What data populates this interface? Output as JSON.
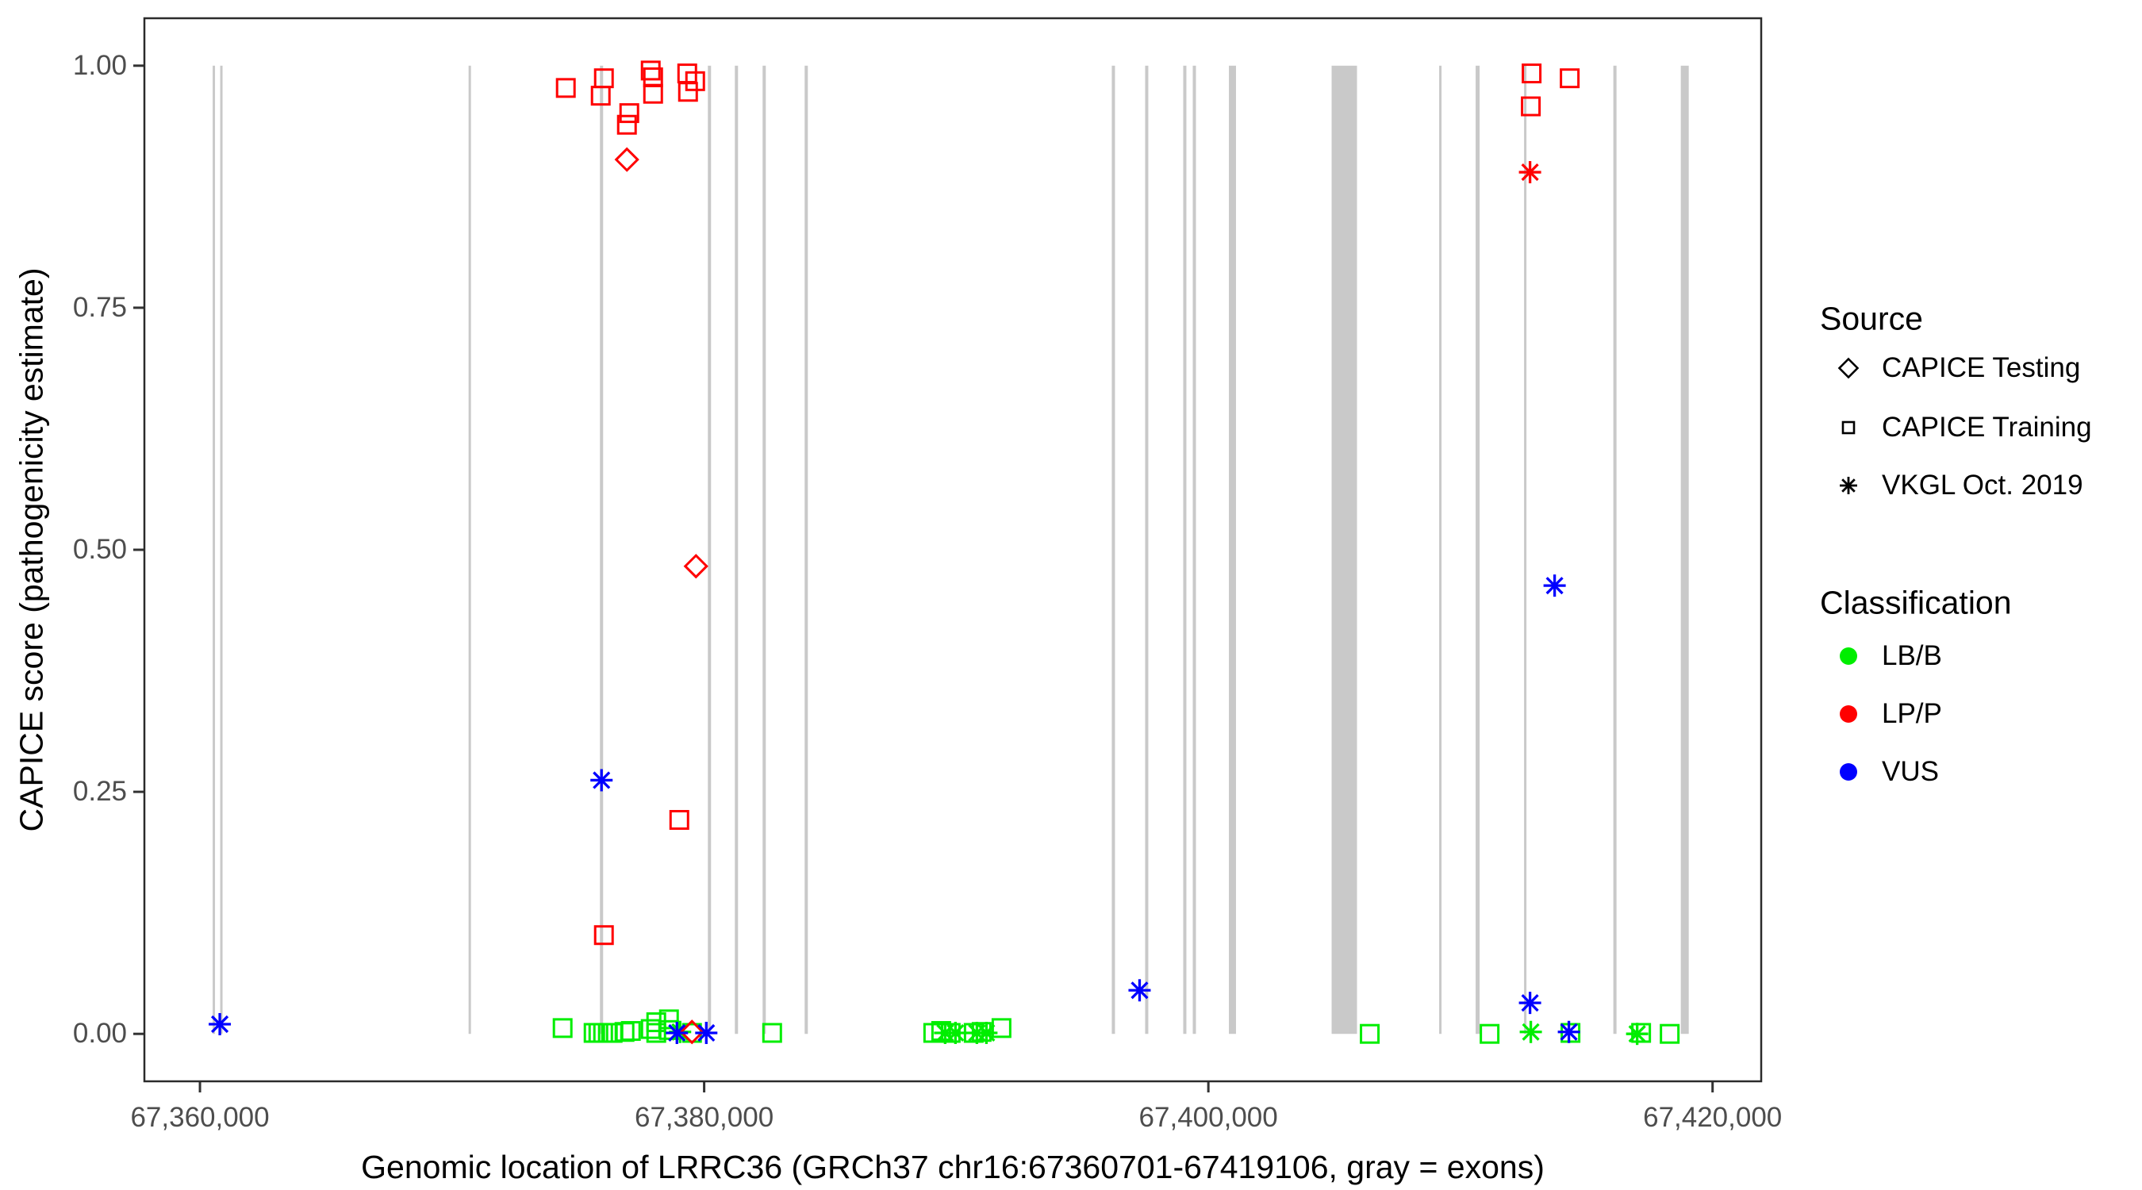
{
  "legend": {
    "source": {
      "title": "Source",
      "items": [
        {
          "label": "CAPICE Testing",
          "shape": "diamond"
        },
        {
          "label": "CAPICE Training",
          "shape": "square"
        },
        {
          "label": "VKGL Oct. 2019",
          "shape": "asterisk"
        }
      ]
    },
    "classification": {
      "title": "Classification",
      "items": [
        {
          "label": "LB/B",
          "color": "#00ee00"
        },
        {
          "label": "LP/P",
          "color": "#ff0000"
        },
        {
          "label": "VUS",
          "color": "#0000ff"
        }
      ]
    }
  },
  "chart_data": {
    "type": "scatter",
    "title": "",
    "xlabel": "Genomic location of LRRC36 (GRCh37 chr16:67360701-67419106, gray = exons)",
    "ylabel": "CAPICE score (pathogenicity estimate)",
    "x_domain": [
      67357796,
      67421929
    ],
    "y_domain": [
      -0.049,
      1.049
    ],
    "x_ticks": [
      {
        "value": 67360000,
        "label": "67,360,000"
      },
      {
        "value": 67380000,
        "label": "67,380,000"
      },
      {
        "value": 67400000,
        "label": "67,400,000"
      },
      {
        "value": 67420000,
        "label": "67,420,000"
      }
    ],
    "y_ticks": [
      {
        "value": 0.0,
        "label": "0.00"
      },
      {
        "value": 0.25,
        "label": "0.25"
      },
      {
        "value": 0.5,
        "label": "0.50"
      },
      {
        "value": 0.75,
        "label": "0.75"
      },
      {
        "value": 1.0,
        "label": "1.00"
      }
    ],
    "grid": false,
    "legend_position": "right",
    "colors": {
      "LB/B": "#00ee00",
      "LP/P": "#ff0000",
      "VUS": "#0000ff",
      "exon": "#c9c9c9",
      "frame": "#2b2b2b",
      "tick": "#333333"
    },
    "shapes": {
      "CAPICE Testing": "diamond",
      "CAPICE Training": "square",
      "VKGL Oct. 2019": "asterisk"
    },
    "exons": [
      [
        67360504,
        67360598
      ],
      [
        67360803,
        67360897
      ],
      [
        67370656,
        67370750
      ],
      [
        67375866,
        67375992
      ],
      [
        67380147,
        67380273
      ],
      [
        67381217,
        67381343
      ],
      [
        67382319,
        67382445
      ],
      [
        67383987,
        67384113
      ],
      [
        67396170,
        67396296
      ],
      [
        67397492,
        67397618
      ],
      [
        67399003,
        67399129
      ],
      [
        67399381,
        67399507
      ],
      [
        67400814,
        67401096
      ],
      [
        67404889,
        67405896
      ],
      [
        67409155,
        67409249
      ],
      [
        67410602,
        67410760
      ],
      [
        67412523,
        67412617
      ],
      [
        67416064,
        67416190
      ],
      [
        67418740,
        67419055
      ]
    ],
    "points": [
      {
        "x": 67374386,
        "y": 0.006,
        "source": "CAPICE Training",
        "class": "LB/B"
      },
      {
        "x": 67375614,
        "y": 0.001,
        "source": "CAPICE Training",
        "class": "LB/B"
      },
      {
        "x": 67375803,
        "y": 0.001,
        "source": "CAPICE Training",
        "class": "LB/B"
      },
      {
        "x": 67375992,
        "y": 0.001,
        "source": "CAPICE Training",
        "class": "LB/B"
      },
      {
        "x": 67376180,
        "y": 0.001,
        "source": "CAPICE Training",
        "class": "LB/B"
      },
      {
        "x": 67376369,
        "y": 0.001,
        "source": "CAPICE Training",
        "class": "LB/B"
      },
      {
        "x": 67376841,
        "y": 0.002,
        "source": "CAPICE Training",
        "class": "LB/B"
      },
      {
        "x": 67377093,
        "y": 0.003,
        "source": "CAPICE Training",
        "class": "LB/B"
      },
      {
        "x": 67377880,
        "y": 0.005,
        "source": "CAPICE Training",
        "class": "LB/B"
      },
      {
        "x": 67378100,
        "y": 0.012,
        "source": "CAPICE Training",
        "class": "LB/B"
      },
      {
        "x": 67378100,
        "y": 0.001,
        "source": "CAPICE Training",
        "class": "LB/B"
      },
      {
        "x": 67378604,
        "y": 0.015,
        "source": "CAPICE Training",
        "class": "LB/B"
      },
      {
        "x": 67378604,
        "y": 0.004,
        "source": "CAPICE Training",
        "class": "LB/B"
      },
      {
        "x": 67379517,
        "y": 0.001,
        "source": "CAPICE Training",
        "class": "LB/B"
      },
      {
        "x": 67382697,
        "y": 0.001,
        "source": "CAPICE Training",
        "class": "LB/B"
      },
      {
        "x": 67389087,
        "y": 0.001,
        "source": "CAPICE Training",
        "class": "LB/B"
      },
      {
        "x": 67389402,
        "y": 0.003,
        "source": "CAPICE Training",
        "class": "LB/B"
      },
      {
        "x": 67389780,
        "y": 0.001,
        "source": "CAPICE Training",
        "class": "LB/B"
      },
      {
        "x": 67390692,
        "y": 0.001,
        "source": "CAPICE Training",
        "class": "LB/B"
      },
      {
        "x": 67391007,
        "y": 0.002,
        "source": "CAPICE Training",
        "class": "LB/B"
      },
      {
        "x": 67391794,
        "y": 0.006,
        "source": "CAPICE Training",
        "class": "LB/B"
      },
      {
        "x": 67406401,
        "y": 0.0,
        "source": "CAPICE Training",
        "class": "LB/B"
      },
      {
        "x": 67411155,
        "y": 0.0,
        "source": "CAPICE Training",
        "class": "LB/B"
      },
      {
        "x": 67414364,
        "y": 0.001,
        "source": "CAPICE Training",
        "class": "LB/B"
      },
      {
        "x": 67417166,
        "y": 0.001,
        "source": "CAPICE Training",
        "class": "LB/B"
      },
      {
        "x": 67418299,
        "y": 0.0,
        "source": "CAPICE Training",
        "class": "LB/B"
      },
      {
        "x": 67379045,
        "y": 0.002,
        "source": "VKGL Oct. 2019",
        "class": "LB/B"
      },
      {
        "x": 67389559,
        "y": 0.001,
        "source": "VKGL Oct. 2019",
        "class": "LB/B"
      },
      {
        "x": 67389968,
        "y": 0.001,
        "source": "VKGL Oct. 2019",
        "class": "LB/B"
      },
      {
        "x": 67390818,
        "y": 0.001,
        "source": "VKGL Oct. 2019",
        "class": "LB/B"
      },
      {
        "x": 67391196,
        "y": 0.001,
        "source": "VKGL Oct. 2019",
        "class": "LB/B"
      },
      {
        "x": 67412790,
        "y": 0.002,
        "source": "VKGL Oct. 2019",
        "class": "LB/B"
      },
      {
        "x": 67417009,
        "y": 0.0,
        "source": "VKGL Oct. 2019",
        "class": "LB/B"
      },
      {
        "x": 67374512,
        "y": 0.977,
        "source": "CAPICE Training",
        "class": "LP/P"
      },
      {
        "x": 67375897,
        "y": 0.969,
        "source": "CAPICE Training",
        "class": "LP/P"
      },
      {
        "x": 67376023,
        "y": 0.987,
        "source": "CAPICE Training",
        "class": "LP/P"
      },
      {
        "x": 67377880,
        "y": 0.995,
        "source": "CAPICE Training",
        "class": "LP/P"
      },
      {
        "x": 67377975,
        "y": 0.988,
        "source": "CAPICE Training",
        "class": "LP/P"
      },
      {
        "x": 67377975,
        "y": 0.971,
        "source": "CAPICE Training",
        "class": "LP/P"
      },
      {
        "x": 67379329,
        "y": 0.992,
        "source": "CAPICE Training",
        "class": "LP/P"
      },
      {
        "x": 67379643,
        "y": 0.984,
        "source": "CAPICE Training",
        "class": "LP/P"
      },
      {
        "x": 67379360,
        "y": 0.973,
        "source": "CAPICE Training",
        "class": "LP/P"
      },
      {
        "x": 67377030,
        "y": 0.951,
        "source": "CAPICE Training",
        "class": "LP/P"
      },
      {
        "x": 67376936,
        "y": 0.939,
        "source": "CAPICE Training",
        "class": "LP/P"
      },
      {
        "x": 67379014,
        "y": 0.221,
        "source": "CAPICE Training",
        "class": "LP/P"
      },
      {
        "x": 67376023,
        "y": 0.102,
        "source": "CAPICE Training",
        "class": "LP/P"
      },
      {
        "x": 67412822,
        "y": 0.992,
        "source": "CAPICE Training",
        "class": "LP/P"
      },
      {
        "x": 67414333,
        "y": 0.987,
        "source": "CAPICE Training",
        "class": "LP/P"
      },
      {
        "x": 67412790,
        "y": 0.958,
        "source": "CAPICE Training",
        "class": "LP/P"
      },
      {
        "x": 67376936,
        "y": 0.903,
        "source": "CAPICE Testing",
        "class": "LP/P"
      },
      {
        "x": 67379675,
        "y": 0.483,
        "source": "CAPICE Testing",
        "class": "LP/P"
      },
      {
        "x": 67379517,
        "y": 0.002,
        "source": "CAPICE Testing",
        "class": "LP/P"
      },
      {
        "x": 67412759,
        "y": 0.89,
        "source": "VKGL Oct. 2019",
        "class": "LP/P"
      },
      {
        "x": 67360787,
        "y": 0.01,
        "source": "VKGL Oct. 2019",
        "class": "VUS"
      },
      {
        "x": 67375929,
        "y": 0.262,
        "source": "VKGL Oct. 2019",
        "class": "VUS"
      },
      {
        "x": 67378920,
        "y": 0.001,
        "source": "VKGL Oct. 2019",
        "class": "VUS"
      },
      {
        "x": 67380085,
        "y": 0.001,
        "source": "VKGL Oct. 2019",
        "class": "VUS"
      },
      {
        "x": 67397272,
        "y": 0.045,
        "source": "VKGL Oct. 2019",
        "class": "VUS"
      },
      {
        "x": 67412759,
        "y": 0.032,
        "source": "VKGL Oct. 2019",
        "class": "VUS"
      },
      {
        "x": 67413735,
        "y": 0.463,
        "source": "VKGL Oct. 2019",
        "class": "VUS"
      },
      {
        "x": 67414301,
        "y": 0.002,
        "source": "VKGL Oct. 2019",
        "class": "VUS"
      }
    ]
  }
}
